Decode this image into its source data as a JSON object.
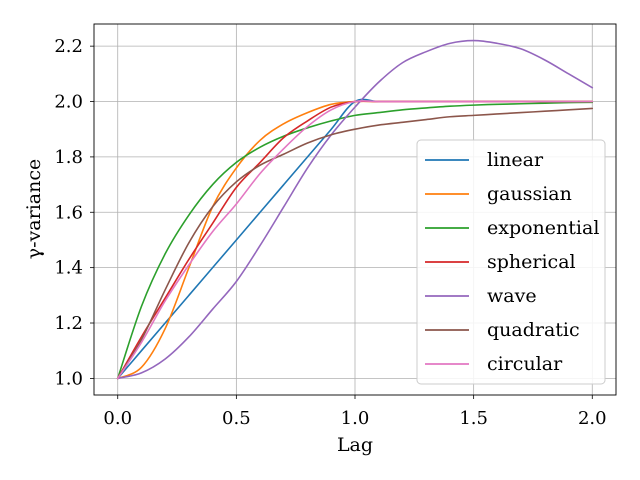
{
  "chart_data": {
    "type": "line",
    "title": "",
    "xlabel": "Lag",
    "ylabel": "γ-variance",
    "xlim": [
      -0.1,
      2.1
    ],
    "ylim": [
      0.94,
      2.28
    ],
    "grid": true,
    "legend_position": "center-right",
    "xticks": [
      0.0,
      0.5,
      1.0,
      1.5,
      2.0
    ],
    "xtick_labels": [
      "0.0",
      "0.5",
      "1.0",
      "1.5",
      "2.0"
    ],
    "yticks": [
      1.0,
      1.2,
      1.4,
      1.6,
      1.8,
      2.0,
      2.2
    ],
    "ytick_labels": [
      "1.0",
      "1.2",
      "1.4",
      "1.6",
      "1.8",
      "2.0",
      "2.2"
    ],
    "x": [
      0.0,
      0.1,
      0.2,
      0.3,
      0.4,
      0.5,
      0.6,
      0.7,
      0.8,
      0.9,
      1.0,
      1.1,
      1.2,
      1.3,
      1.4,
      1.5,
      1.6,
      1.7,
      1.8,
      1.9,
      2.0
    ],
    "series": [
      {
        "name": "linear",
        "color": "#1f77b4",
        "values": [
          1.0,
          1.1,
          1.2,
          1.3,
          1.4,
          1.5,
          1.6,
          1.7,
          1.8,
          1.9,
          2.0,
          2.0,
          2.0,
          2.0,
          2.0,
          2.0,
          2.0,
          2.0,
          2.0,
          2.0,
          2.0
        ]
      },
      {
        "name": "gaussian",
        "color": "#ff7f0e",
        "values": [
          1.0,
          1.04,
          1.18,
          1.4,
          1.62,
          1.76,
          1.86,
          1.92,
          1.96,
          1.99,
          2.0,
          2.0,
          2.0,
          2.0,
          2.0,
          2.0,
          2.0,
          2.0,
          2.0,
          2.0,
          2.0
        ]
      },
      {
        "name": "exponential",
        "color": "#2ca02c",
        "values": [
          1.0,
          1.26,
          1.45,
          1.59,
          1.7,
          1.78,
          1.835,
          1.875,
          1.905,
          1.93,
          1.95,
          1.96,
          1.97,
          1.977,
          1.983,
          1.987,
          1.99,
          1.992,
          1.994,
          1.996,
          1.997
        ]
      },
      {
        "name": "spherical",
        "color": "#d62728",
        "values": [
          1.0,
          1.15,
          1.29,
          1.43,
          1.56,
          1.69,
          1.78,
          1.87,
          1.93,
          1.98,
          2.0,
          2.0,
          2.0,
          2.0,
          2.0,
          2.0,
          2.0,
          2.0,
          2.0,
          2.0,
          2.0
        ]
      },
      {
        "name": "wave",
        "color": "#9467bd",
        "values": [
          1.0,
          1.02,
          1.07,
          1.15,
          1.25,
          1.35,
          1.48,
          1.62,
          1.76,
          1.88,
          1.98,
          2.07,
          2.14,
          2.18,
          2.21,
          2.22,
          2.21,
          2.19,
          2.15,
          2.1,
          2.05
        ]
      },
      {
        "name": "quadratic",
        "color": "#8c564b",
        "values": [
          1.0,
          1.14,
          1.32,
          1.49,
          1.62,
          1.71,
          1.77,
          1.81,
          1.85,
          1.88,
          1.9,
          1.915,
          1.925,
          1.935,
          1.945,
          1.95,
          1.955,
          1.96,
          1.965,
          1.97,
          1.975
        ]
      },
      {
        "name": "circular",
        "color": "#e377c2",
        "values": [
          1.0,
          1.13,
          1.28,
          1.41,
          1.53,
          1.63,
          1.74,
          1.83,
          1.91,
          1.97,
          2.0,
          2.0,
          2.0,
          2.0,
          2.0,
          2.0,
          2.0,
          2.0,
          2.0,
          2.0,
          2.0
        ]
      }
    ]
  }
}
